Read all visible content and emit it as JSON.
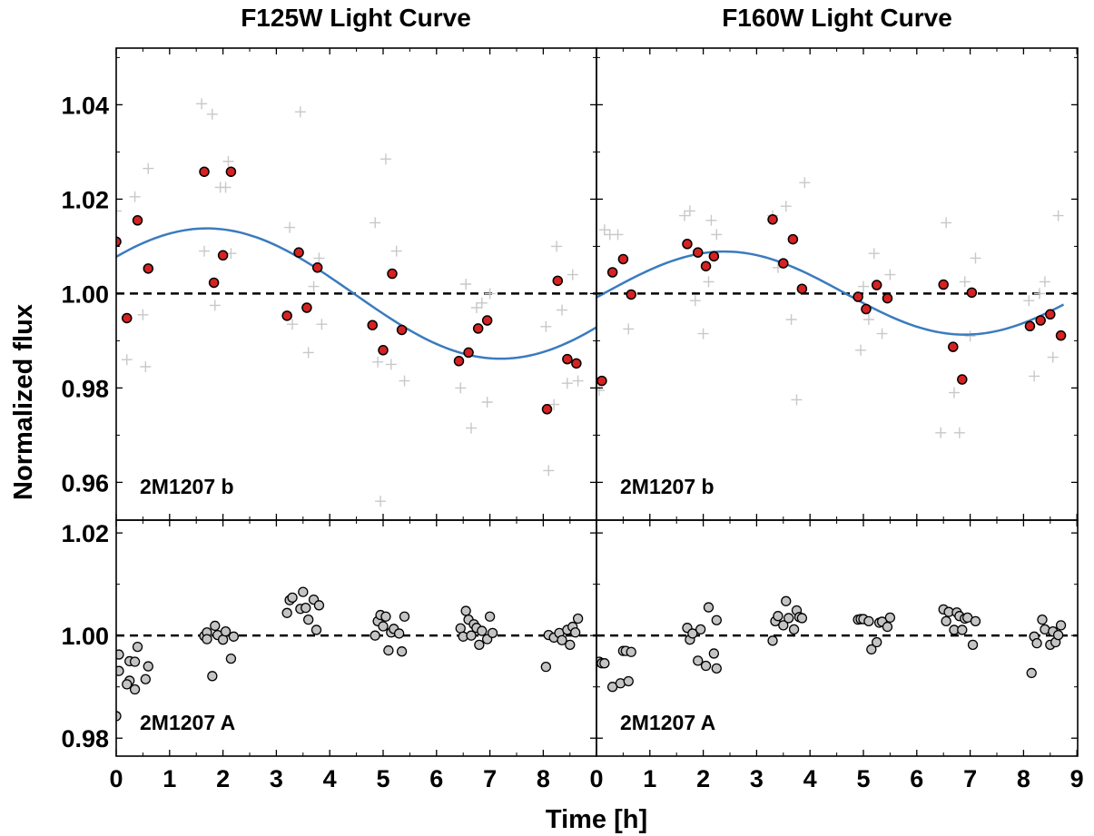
{
  "chart_data": {
    "type": "scatter",
    "xlabel": "Time [h]",
    "ylabel": "Normalized flux",
    "xlim": [
      0,
      9
    ],
    "reference_line": 1.0,
    "panels": [
      {
        "id": "f125w-b",
        "title": "F125W Light Curve",
        "label": "2M1207 b",
        "ylim": [
          0.952,
          1.052
        ],
        "yticks": [
          "0.96",
          "0.98",
          "1.00",
          "1.02",
          "1.04"
        ],
        "ytick_values": [
          0.96,
          0.98,
          1.0,
          1.02,
          1.04
        ],
        "xlim": [
          0,
          9
        ],
        "xticks": [
          0,
          1,
          2,
          3,
          4,
          5,
          6,
          7,
          8
        ],
        "binned": {
          "x": [
            0.0,
            0.2,
            0.4,
            0.6,
            1.65,
            1.83,
            2.0,
            2.15,
            3.2,
            3.42,
            3.57,
            3.77,
            4.8,
            5.0,
            5.17,
            5.35,
            6.42,
            6.6,
            6.78,
            6.95,
            8.07,
            8.27,
            8.45,
            8.62
          ],
          "y": [
            1.011,
            0.9948,
            1.0155,
            1.0053,
            1.0258,
            1.0023,
            1.0081,
            1.0258,
            0.9953,
            1.0087,
            0.997,
            1.0055,
            0.9933,
            0.988,
            1.0042,
            0.9923,
            0.9857,
            0.9875,
            0.9926,
            0.9943,
            0.9755,
            1.0027,
            0.9861,
            0.9852
          ]
        },
        "unbinned": {
          "x": [
            0.0,
            0.2,
            0.35,
            0.5,
            0.55,
            0.6,
            1.6,
            1.65,
            1.8,
            1.85,
            1.95,
            2.05,
            2.1,
            2.15,
            3.25,
            3.3,
            3.45,
            3.6,
            3.7,
            3.8,
            3.85,
            4.85,
            4.9,
            4.95,
            5.05,
            5.15,
            5.25,
            5.4,
            6.45,
            6.55,
            6.65,
            6.75,
            6.85,
            6.95,
            7.0,
            8.05,
            8.1,
            8.2,
            8.25,
            8.35,
            8.45,
            8.55,
            8.65
          ],
          "y": [
            1.0175,
            0.986,
            1.0205,
            0.9955,
            0.9845,
            1.0265,
            1.0402,
            1.009,
            1.038,
            0.9975,
            1.0225,
            1.0225,
            1.028,
            1.0085,
            1.014,
            0.9935,
            1.0385,
            0.9875,
            1.0015,
            1.0075,
            0.9935,
            1.015,
            0.9855,
            0.956,
            1.0285,
            0.985,
            1.009,
            0.9815,
            0.98,
            1.002,
            0.9715,
            0.997,
            0.998,
            0.977,
            1.0,
            0.993,
            0.9625,
            0.9765,
            1.01,
            0.9965,
            0.981,
            1.004,
            0.9815
          ]
        },
        "model": {
          "mean": 1.0,
          "amplitude": 0.0138,
          "period": 11.0,
          "peak_time": 1.7,
          "x_range": [
            0,
            9.6
          ]
        }
      },
      {
        "id": "f160w-b",
        "title": "F160W Light Curve",
        "label": "2M1207 b",
        "ylim": [
          0.952,
          1.052
        ],
        "yticks": [
          "0.96",
          "0.98",
          "1.00",
          "1.02",
          "1.04"
        ],
        "ytick_values": [
          0.96,
          0.98,
          1.0,
          1.02,
          1.04
        ],
        "xlim": [
          0,
          9
        ],
        "xticks": [
          0,
          1,
          2,
          3,
          4,
          5,
          6,
          7,
          8,
          9
        ],
        "binned": {
          "x": [
            0.1,
            0.3,
            0.5,
            0.65,
            1.7,
            1.9,
            2.05,
            2.2,
            3.3,
            3.5,
            3.68,
            3.85,
            4.9,
            5.05,
            5.25,
            5.45,
            6.5,
            6.68,
            6.85,
            7.03,
            8.12,
            8.32,
            8.5,
            8.7
          ],
          "y": [
            0.9815,
            1.0045,
            1.0073,
            0.9998,
            1.0105,
            1.0087,
            1.0058,
            1.0079,
            1.0157,
            1.0064,
            1.0115,
            1.001,
            0.9993,
            0.9967,
            1.0018,
            0.999,
            1.0019,
            0.9887,
            0.9818,
            1.0002,
            0.9931,
            0.9943,
            0.9956,
            0.9911
          ]
        },
        "unbinned": {
          "x": [
            0.05,
            0.15,
            0.25,
            0.4,
            0.6,
            1.65,
            1.75,
            1.85,
            2.0,
            2.1,
            2.15,
            2.25,
            3.3,
            3.4,
            3.55,
            3.65,
            3.75,
            3.9,
            4.95,
            5.0,
            5.1,
            5.2,
            5.35,
            5.5,
            6.45,
            6.55,
            6.7,
            6.8,
            6.9,
            7.0,
            7.1,
            8.1,
            8.2,
            8.3,
            8.4,
            8.55,
            8.65
          ],
          "y": [
            0.9795,
            1.0135,
            1.0125,
            1.0125,
            0.9925,
            1.0165,
            1.0175,
            0.9985,
            0.9915,
            1.0025,
            1.0155,
            1.0125,
            1.0165,
            1.0055,
            1.0185,
            0.9945,
            0.9775,
            1.0235,
            0.988,
            1.0015,
            0.9945,
            1.0085,
            0.9915,
            1.004,
            0.9705,
            1.015,
            0.979,
            0.9705,
            1.0025,
            0.991,
            1.0075,
            0.9985,
            0.9825,
            1.0,
            1.0025,
            0.9865,
            1.0165
          ]
        },
        "model": {
          "mean": 1.0001,
          "amplitude": 0.0088,
          "period": 9.0,
          "peak_time": 2.4,
          "x_range": [
            0,
            8.75
          ]
        }
      },
      {
        "id": "f125w-a",
        "label": "2M1207 A",
        "ylim": [
          0.9765,
          1.0225
        ],
        "yticks": [
          "0.98",
          "1.00",
          "1.02"
        ],
        "ytick_values": [
          0.98,
          1.0,
          1.02
        ],
        "xlim": [
          0,
          9
        ],
        "xticks": [
          0,
          1,
          2,
          3,
          4,
          5,
          6,
          7,
          8
        ],
        "xticklabels": [
          "0",
          "1",
          "2",
          "3",
          "4",
          "5",
          "6",
          "7",
          "8"
        ],
        "points": {
          "x": [
            0.0,
            0.05,
            0.05,
            0.25,
            0.2,
            0.25,
            0.35,
            0.35,
            0.4,
            0.55,
            0.6,
            1.65,
            1.7,
            1.7,
            1.8,
            1.85,
            1.9,
            2.0,
            2.05,
            2.15,
            2.2,
            3.2,
            3.25,
            3.3,
            3.45,
            3.5,
            3.55,
            3.6,
            3.7,
            3.75,
            3.8,
            4.85,
            4.9,
            4.95,
            5.0,
            5.05,
            5.1,
            5.15,
            5.2,
            5.3,
            5.35,
            5.4,
            6.45,
            6.5,
            6.55,
            6.6,
            6.65,
            6.7,
            6.75,
            6.8,
            6.85,
            6.95,
            7.0,
            7.05,
            8.05,
            8.1,
            8.2,
            8.3,
            8.35,
            8.45,
            8.5,
            8.55,
            8.6,
            8.65
          ],
          "y": [
            0.9843,
            0.9931,
            0.9963,
            0.9912,
            0.9905,
            0.995,
            0.9949,
            0.9895,
            0.9978,
            0.9915,
            0.994,
            0.9999,
            1.0006,
            0.9993,
            0.9921,
            1.0019,
            1.0001,
            0.9992,
            1.0008,
            0.9955,
            0.9998,
            1.0044,
            1.0069,
            1.0074,
            1.0052,
            1.0085,
            1.0054,
            1.0031,
            1.007,
            1.0011,
            1.0059,
            1.0,
            1.0028,
            1.004,
            1.0018,
            1.0037,
            0.9971,
            1.0006,
            1.0013,
            1.0004,
            0.9969,
            1.0037,
            1.0014,
            0.9998,
            1.0048,
            1.0031,
            1.0,
            1.0022,
            1.0015,
            0.9982,
            1.0009,
            0.9993,
            1.0037,
            1.0005,
            0.9939,
            1.0001,
            0.9996,
            1.0005,
            0.9991,
            1.0011,
            0.9982,
            1.0017,
            1.0006,
            1.0033
          ]
        }
      },
      {
        "id": "f160w-a",
        "label": "2M1207 A",
        "ylim": [
          0.9765,
          1.0225
        ],
        "yticks": [
          "0.98",
          "1.00",
          "1.02"
        ],
        "ytick_values": [
          0.98,
          1.0,
          1.02
        ],
        "xlim": [
          0,
          9
        ],
        "xticks": [
          0,
          1,
          2,
          3,
          4,
          5,
          6,
          7,
          8,
          9
        ],
        "xticklabels": [
          "0",
          "1",
          "2",
          "3",
          "4",
          "5",
          "6",
          "7",
          "8",
          "9"
        ],
        "points": {
          "x": [
            0.05,
            0.1,
            0.15,
            0.3,
            0.45,
            0.5,
            0.55,
            0.6,
            0.65,
            1.7,
            1.75,
            1.8,
            1.9,
            1.95,
            2.05,
            2.1,
            2.2,
            2.25,
            2.25,
            3.3,
            3.35,
            3.4,
            3.5,
            3.55,
            3.6,
            3.7,
            3.75,
            3.8,
            3.85,
            4.9,
            4.95,
            5.0,
            5.1,
            5.15,
            5.25,
            5.3,
            5.35,
            5.45,
            5.5,
            6.5,
            6.55,
            6.6,
            6.7,
            6.75,
            6.8,
            6.85,
            6.9,
            6.95,
            7.05,
            7.1,
            8.15,
            8.2,
            8.25,
            8.35,
            8.4,
            8.5,
            8.55,
            8.6,
            8.65,
            8.7
          ],
          "y": [
            0.9949,
            0.9946,
            0.9946,
            0.99,
            0.9907,
            0.997,
            0.997,
            0.9911,
            0.9968,
            1.0015,
            0.9992,
            1.0004,
            0.9951,
            1.0012,
            0.9941,
            1.0055,
            0.9965,
            1.003,
            0.9936,
            0.999,
            1.0028,
            1.0038,
            1.002,
            1.0067,
            1.0034,
            1.0012,
            1.0049,
            1.0036,
            1.0034,
            1.0031,
            1.0032,
            1.0032,
            1.0028,
            0.9973,
            0.9987,
            1.0025,
            1.0027,
            1.0017,
            1.0035,
            1.0051,
            1.0028,
            1.0046,
            1.0011,
            1.0045,
            1.0038,
            1.0011,
            1.0033,
            1.0035,
            0.9982,
            1.0028,
            0.9927,
            0.9998,
            0.9985,
            1.0031,
            1.0012,
            0.9982,
            1.0008,
            0.9987,
            1.0001,
            1.002
          ]
        }
      }
    ],
    "colors": {
      "binned_fill": "#d62222",
      "unbinned": "#c8c8c8",
      "model": "#3a7bbf",
      "primary_fill": "#c4c4c4",
      "marker_edge": "#000000",
      "reference": "#000000"
    }
  }
}
